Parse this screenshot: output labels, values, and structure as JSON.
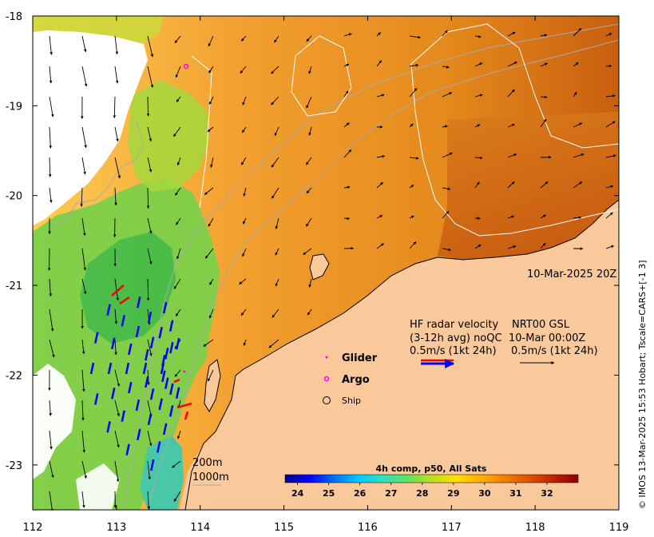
{
  "map": {
    "x_ticks": [
      "112",
      "113",
      "114",
      "115",
      "116",
      "117",
      "118",
      "119"
    ],
    "y_ticks": [
      "-18",
      "-19",
      "-20",
      "-21",
      "-22",
      "-23"
    ],
    "x_range": [
      112,
      119
    ],
    "y_range": [
      -23.5,
      -18
    ],
    "timestamp": "10-Mar-2025 20Z",
    "credit": "© IMOS 13-Mar-2025 15:53 Hobart; Tscale=CARS+[-1 3]",
    "colors": {
      "land": "#f9c89b",
      "missing": "#ffffff",
      "hf_radar": "#0000ff",
      "hf_radar_alt": "#ff0000",
      "glider": "#ff00ff",
      "argo": "#ff00ff",
      "isobath": "#aaaaaa",
      "contour": "#ffffff"
    }
  },
  "legend": {
    "hf_line1": "HF radar velocity",
    "hf_line2": "(3-12h avg) noQC",
    "hf_line3": "0.5m/s (1kt 24h)",
    "nrt_line1": "NRT00 GSL",
    "nrt_line2": "10-Mar 00:00Z",
    "nrt_line3": "0.5m/s (1kt 24h)",
    "glider": "Glider",
    "argo": "Argo",
    "ship": "Ship",
    "isobath_200": "200m",
    "isobath_1000": "1000m"
  },
  "colorbar": {
    "title": "4h comp, p50, All Sats",
    "ticks": [
      "24",
      "25",
      "26",
      "27",
      "28",
      "29",
      "30",
      "31",
      "32"
    ],
    "min": 23.6,
    "max": 33,
    "colors": [
      "#00008b",
      "#0000ff",
      "#0070ff",
      "#00c8ff",
      "#30e0c0",
      "#60e060",
      "#b8e020",
      "#ffe000",
      "#ffb000",
      "#f08000",
      "#e05000",
      "#c02000",
      "#8b0000"
    ]
  }
}
